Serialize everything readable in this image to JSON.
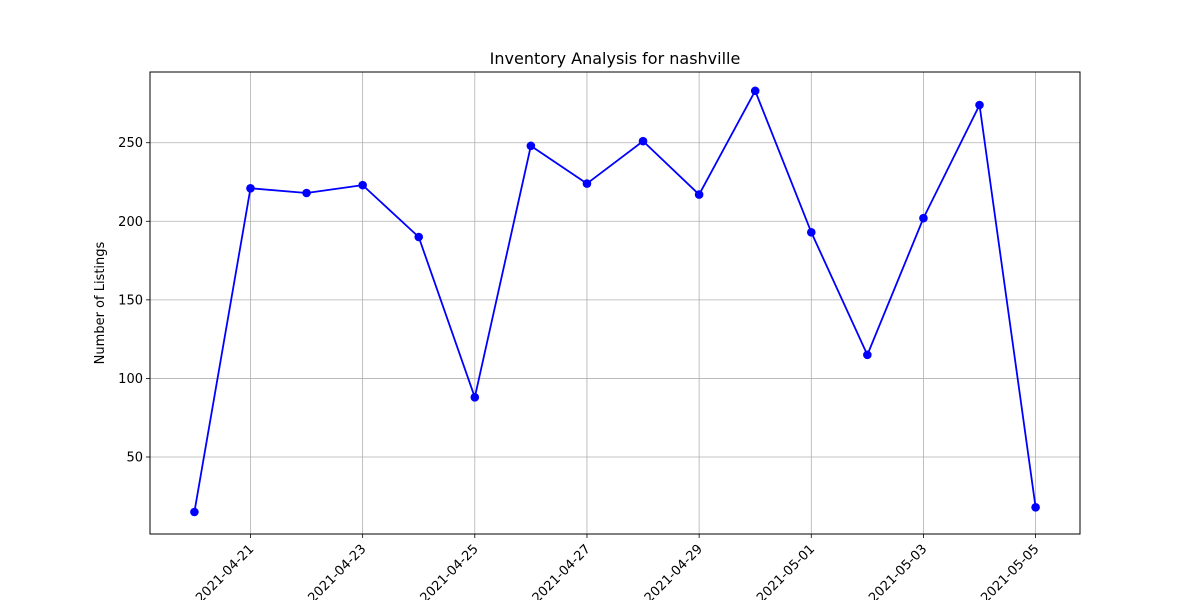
{
  "chart_data": {
    "type": "line",
    "title": "Inventory Analysis for nashville",
    "xlabel": "",
    "ylabel": "Number of Listings",
    "x": [
      "2021-04-20",
      "2021-04-21",
      "2021-04-22",
      "2021-04-23",
      "2021-04-24",
      "2021-04-25",
      "2021-04-26",
      "2021-04-27",
      "2021-04-28",
      "2021-04-29",
      "2021-04-30",
      "2021-05-01",
      "2021-05-02",
      "2021-05-03",
      "2021-05-04",
      "2021-05-05"
    ],
    "series": [
      {
        "values": [
          15,
          221,
          218,
          223,
          190,
          88,
          248,
          224,
          251,
          217,
          283,
          193,
          115,
          202,
          274,
          18
        ],
        "color": "#0000ff",
        "marker": "circle"
      }
    ],
    "xticks": [
      "2021-04-21",
      "2021-04-23",
      "2021-04-25",
      "2021-04-27",
      "2021-04-29",
      "2021-05-01",
      "2021-05-03",
      "2021-05-05"
    ],
    "yticks": [
      50,
      100,
      150,
      200,
      250
    ],
    "ylim": [
      1,
      295
    ],
    "xlim": [
      "2021-04-19T05:00",
      "2021-05-05T19:00"
    ],
    "grid": true,
    "xtick_rotation": 45
  }
}
